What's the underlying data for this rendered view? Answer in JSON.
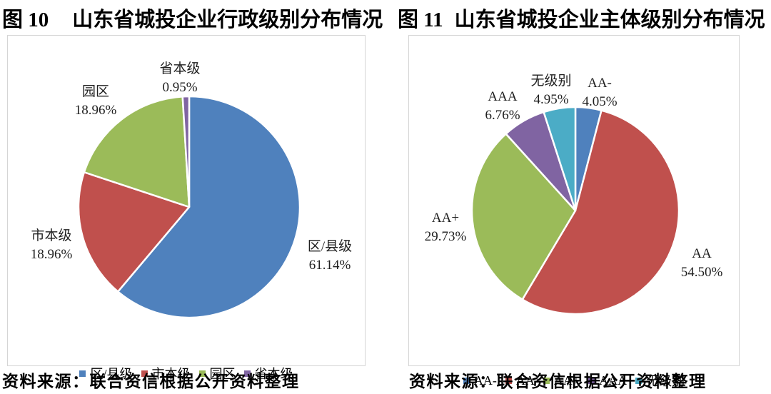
{
  "figures": [
    {
      "title_prefix": "图 10",
      "title_text": "山东省城投企业行政级别分布情况",
      "source": "资料来源：联合资信根据公开资料整理"
    },
    {
      "title_prefix": "图 11",
      "title_text": "山东省城投企业主体级别分布情况",
      "source": "资料来源：联合资信根据公开资料整理"
    }
  ],
  "chart_data": [
    {
      "type": "pie",
      "title": "图 10 山东省城投企业行政级别分布情况",
      "start_angle_deg": 0,
      "direction": "clockwise",
      "legend_position": "bottom",
      "slices": [
        {
          "label": "区/县级",
          "value": 61.14,
          "pct_label": "61.14%",
          "color": "#4F81BD"
        },
        {
          "label": "市本级",
          "value": 18.96,
          "pct_label": "18.96%",
          "color": "#C0504D"
        },
        {
          "label": "园区",
          "value": 18.96,
          "pct_label": "18.96%",
          "color": "#9BBB59"
        },
        {
          "label": "省本级",
          "value": 0.95,
          "pct_label": "0.95%",
          "color": "#8064A2"
        }
      ]
    },
    {
      "type": "pie",
      "title": "图 11 山东省城投企业主体级别分布情况",
      "start_angle_deg": 0,
      "direction": "clockwise",
      "legend_position": "bottom",
      "slices": [
        {
          "label": "AA-",
          "value": 4.05,
          "pct_label": "4.05%",
          "color": "#4F81BD"
        },
        {
          "label": "AA",
          "value": 54.5,
          "pct_label": "54.50%",
          "color": "#C0504D"
        },
        {
          "label": "AA+",
          "value": 29.73,
          "pct_label": "29.73%",
          "color": "#9BBB59"
        },
        {
          "label": "AAA",
          "value": 6.76,
          "pct_label": "6.76%",
          "color": "#8064A2"
        },
        {
          "label": "无级别",
          "value": 4.95,
          "pct_label": "4.95%",
          "color": "#4BACC6"
        }
      ]
    }
  ]
}
